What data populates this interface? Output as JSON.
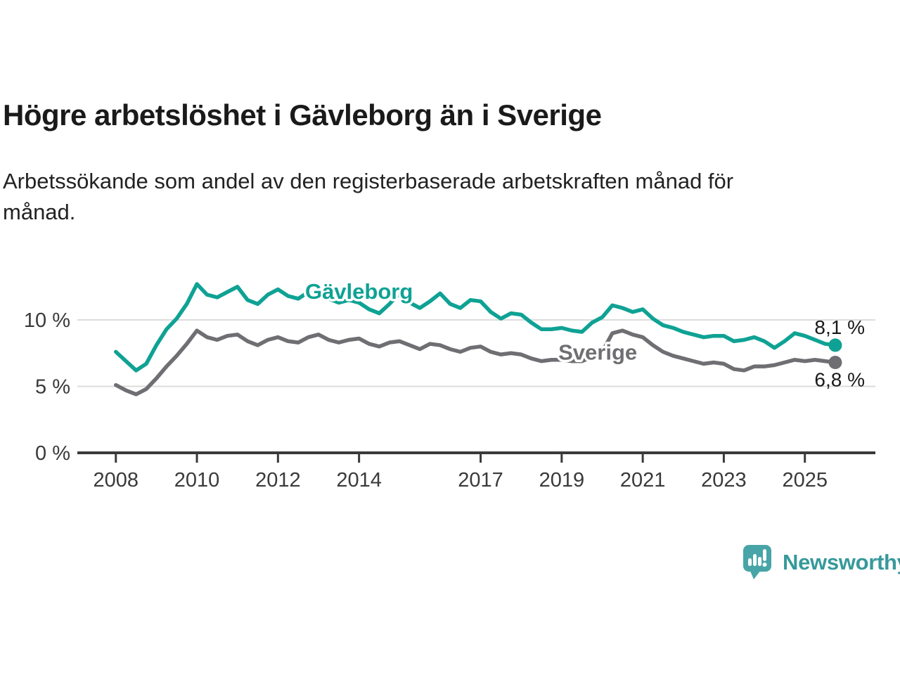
{
  "chart_data": {
    "type": "line",
    "title": "Högre arbetslöshet i Gävleborg än i Sverige",
    "subtitle": "Arbetssökande som andel av den registerbaserade arbetskraften månad för\nmånad.",
    "x_unit": "decimal year (registered unemployment share, sampled quarterly)",
    "xlim": [
      2007.05,
      2026.74
    ],
    "ylim": [
      0,
      13.97
    ],
    "grid": "horizontal gridlines at 5 % and 10 % only",
    "legend": "inline labels next to each line",
    "gridlines_y": [
      5,
      10
    ],
    "yticks": [
      {
        "v": 0,
        "label": "0 %"
      },
      {
        "v": 5,
        "label": "5 %"
      },
      {
        "v": 10,
        "label": "10 %"
      }
    ],
    "xticks": [
      {
        "v": 2008,
        "label": "2008"
      },
      {
        "v": 2010,
        "label": "2010"
      },
      {
        "v": 2012,
        "label": "2012"
      },
      {
        "v": 2014,
        "label": "2014"
      },
      {
        "v": 2017,
        "label": "2017"
      },
      {
        "v": 2019,
        "label": "2019"
      },
      {
        "v": 2021,
        "label": "2021"
      },
      {
        "v": 2023,
        "label": "2023"
      },
      {
        "v": 2025,
        "label": "2025"
      }
    ],
    "series": [
      {
        "name": "Gävleborg",
        "color": "#0fa294",
        "x_start": 2008.0,
        "x_step": 0.25,
        "end_value": 8.1,
        "end_label": "8,1 %",
        "end_label_dy": -16,
        "label_anchor": {
          "x": 2014.0,
          "y": 11.6
        },
        "values": [
          7.6,
          6.9,
          6.2,
          6.7,
          8.1,
          9.3,
          10.1,
          11.2,
          12.7,
          11.9,
          11.7,
          12.1,
          12.5,
          11.5,
          11.2,
          11.9,
          12.3,
          11.8,
          11.6,
          12.1,
          12.0,
          11.6,
          11.3,
          11.5,
          11.3,
          10.8,
          10.5,
          11.2,
          12.0,
          11.3,
          10.9,
          11.4,
          12.0,
          11.2,
          10.9,
          11.5,
          11.4,
          10.6,
          10.1,
          10.5,
          10.4,
          9.8,
          9.3,
          9.3,
          9.4,
          9.2,
          9.1,
          9.8,
          10.2,
          11.1,
          10.9,
          10.6,
          10.8,
          10.1,
          9.6,
          9.4,
          9.1,
          8.9,
          8.7,
          8.8,
          8.8,
          8.4,
          8.5,
          8.7,
          8.4,
          7.9,
          8.4,
          9.0,
          8.8,
          8.5,
          8.2,
          8.1
        ]
      },
      {
        "name": "Sverige",
        "color": "#6f6f73",
        "x_start": 2008.0,
        "x_step": 0.25,
        "end_value": 6.8,
        "end_label": "6,8 %",
        "end_label_dy": 34,
        "label_anchor": {
          "x": 2019.89,
          "y": 7.0
        },
        "values": [
          5.1,
          4.7,
          4.4,
          4.8,
          5.6,
          6.5,
          7.3,
          8.2,
          9.2,
          8.7,
          8.5,
          8.8,
          8.9,
          8.4,
          8.1,
          8.5,
          8.7,
          8.4,
          8.3,
          8.7,
          8.9,
          8.5,
          8.3,
          8.5,
          8.6,
          8.2,
          8.0,
          8.3,
          8.4,
          8.1,
          7.8,
          8.2,
          8.1,
          7.8,
          7.6,
          7.9,
          8.0,
          7.6,
          7.4,
          7.5,
          7.4,
          7.1,
          6.9,
          7.0,
          7.0,
          6.9,
          6.9,
          7.2,
          7.6,
          9.0,
          9.2,
          8.9,
          8.7,
          8.1,
          7.6,
          7.3,
          7.1,
          6.9,
          6.7,
          6.8,
          6.7,
          6.3,
          6.2,
          6.5,
          6.5,
          6.6,
          6.8,
          7.0,
          6.9,
          7.0,
          6.9,
          6.8
        ]
      }
    ]
  },
  "footer": {
    "brand": "Newsworthy"
  },
  "theme": {
    "teal": "#0fa294",
    "gray": "#6f6f73",
    "gridline": "#dcdcdc",
    "axis": "#3a3a3a",
    "logo_bubble": "#47a5a7",
    "logo_text": "#37999b"
  }
}
